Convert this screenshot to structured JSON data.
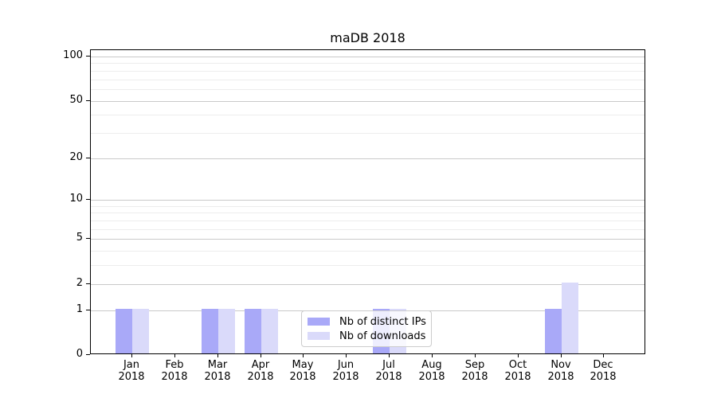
{
  "chart_data": {
    "type": "bar",
    "title": "maDB 2018",
    "categories": [
      "Jan",
      "Feb",
      "Mar",
      "Apr",
      "May",
      "Jun",
      "Jul",
      "Aug",
      "Sep",
      "Oct",
      "Nov",
      "Dec"
    ],
    "year_label": "2018",
    "series": [
      {
        "name": "Nb of distinct IPs",
        "color": "#a9a9f8",
        "values": [
          1,
          0,
          1,
          1,
          0,
          0,
          1,
          0,
          0,
          0,
          1,
          0
        ]
      },
      {
        "name": "Nb of downloads",
        "color": "#dadafa",
        "values": [
          1,
          0,
          1,
          1,
          0,
          0,
          1,
          0,
          0,
          0,
          2,
          0
        ]
      }
    ],
    "xlabel": "",
    "ylabel": "",
    "y_axis": {
      "scale": "log10(1+y)",
      "major_ticks": [
        100,
        50,
        20,
        10,
        5,
        2,
        1,
        0
      ],
      "minor_gridlines": [
        90,
        80,
        70,
        60,
        40,
        30,
        9,
        8,
        7,
        6,
        4,
        3
      ],
      "top_value": 110,
      "bottom_value": 0
    },
    "grid": "horizontal",
    "legend": {
      "position": "lower center",
      "entries": [
        "Nb of distinct IPs",
        "Nb of downloads"
      ]
    }
  },
  "colors": {
    "background": "#ffffff",
    "bar_distinct_ips": "#a9a9f8",
    "bar_downloads": "#dadafa",
    "major_grid": "#c9c9c9",
    "minor_grid": "#ededed",
    "axis_spine": "#000000",
    "text": "#000000",
    "legend_border": "#cccccc"
  }
}
